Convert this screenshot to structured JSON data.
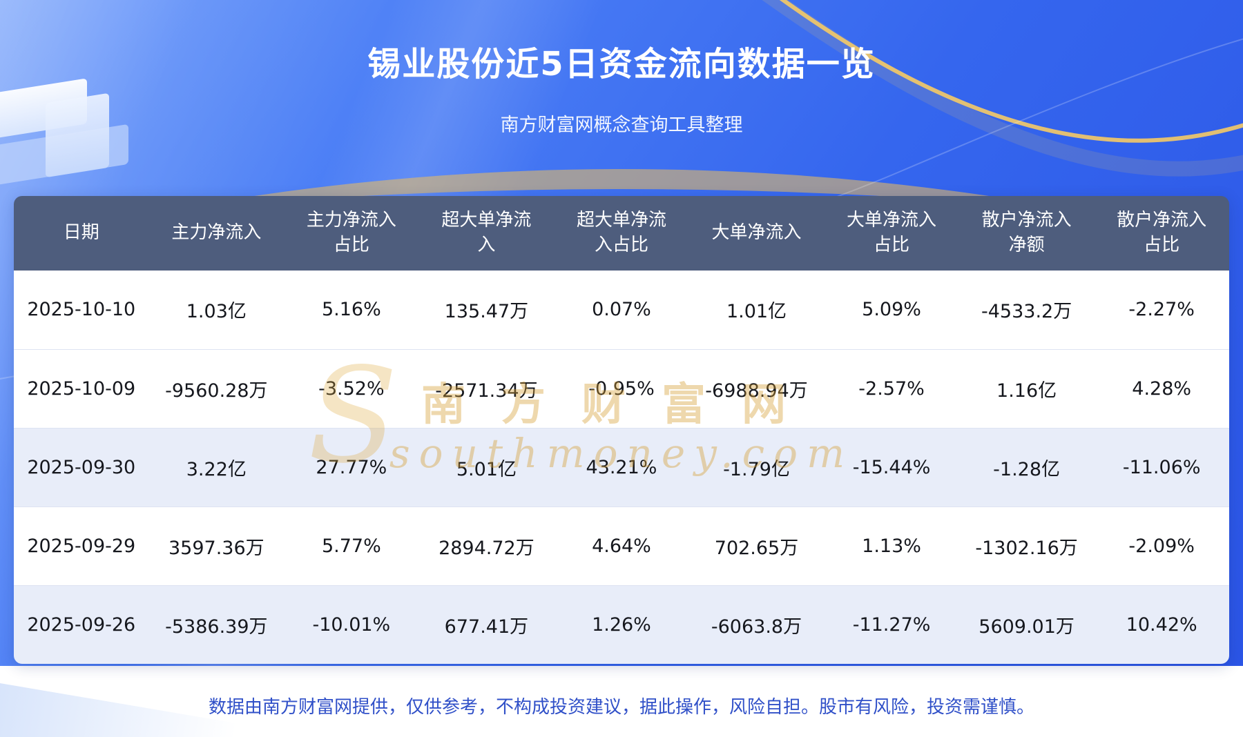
{
  "page": {
    "title": "锡业股份近5日资金流向数据一览",
    "subtitle": "南方财富网概念查询工具整理",
    "footer_note": "数据由南方财富网提供，仅供参考，不构成投资建议，据此操作，风险自担。股市有风险，投资需谨慎。"
  },
  "watermark": {
    "swoosh": "S",
    "cn": "南方财富网",
    "en": "southmoney.com"
  },
  "chart_data": {
    "type": "table",
    "title": "锡业股份近5日资金流向数据一览",
    "subtitle": "南方财富网概念查询工具整理",
    "columns": [
      "日期",
      "主力净流入",
      "主力净流入占比",
      "超大单净流入",
      "超大单净流入占比",
      "大单净流入",
      "大单净流入占比",
      "散户净流入净额",
      "散户净流入占比"
    ],
    "rows": [
      [
        "2025-10-10",
        "1.03亿",
        "5.16%",
        "135.47万",
        "0.07%",
        "1.01亿",
        "5.09%",
        "-4533.2万",
        "-2.27%"
      ],
      [
        "2025-10-09",
        "-9560.28万",
        "-3.52%",
        "-2571.34万",
        "-0.95%",
        "-6988.94万",
        "-2.57%",
        "1.16亿",
        "4.28%"
      ],
      [
        "2025-09-30",
        "3.22亿",
        "27.77%",
        "5.01亿",
        "43.21%",
        "-1.79亿",
        "-15.44%",
        "-1.28亿",
        "-11.06%"
      ],
      [
        "2025-09-29",
        "3597.36万",
        "5.77%",
        "2894.72万",
        "4.64%",
        "702.65万",
        "1.13%",
        "-1302.16万",
        "-2.09%"
      ],
      [
        "2025-09-26",
        "-5386.39万",
        "-10.01%",
        "677.41万",
        "1.26%",
        "-6063.8万",
        "-11.27%",
        "5609.01万",
        "10.42%"
      ]
    ]
  },
  "colors": {
    "background_blue_top": "#6d9bfa",
    "background_blue_bottom": "#2b55e6",
    "table_header_bg": "#4e5d7d",
    "row_tint": "#e8edf9",
    "accent_gold": "#f0c05a",
    "watermark_gold": "#d49e32",
    "footer_text_blue": "#3050c8",
    "table_text": "#15171d"
  }
}
